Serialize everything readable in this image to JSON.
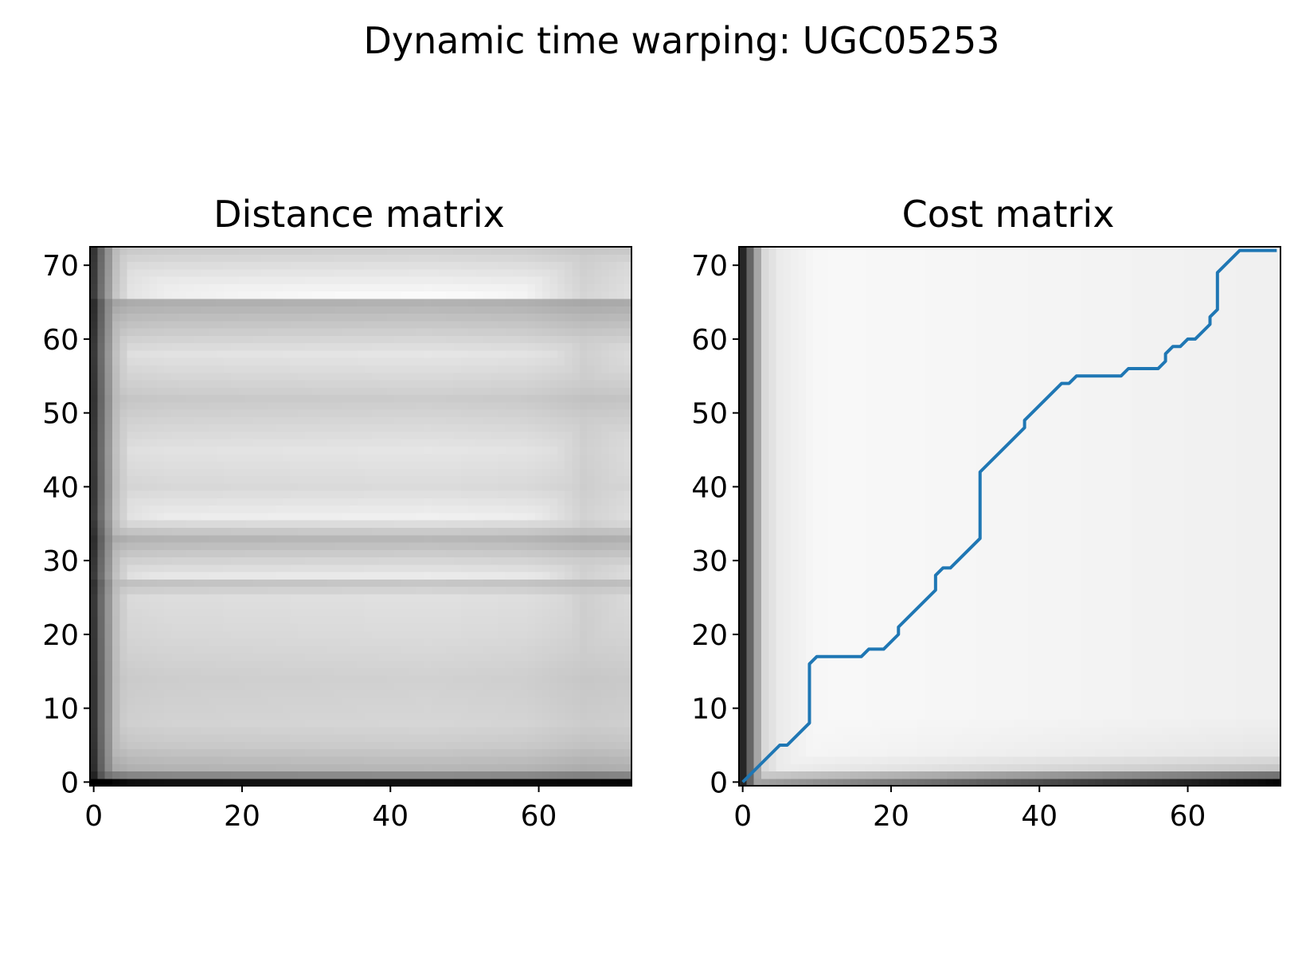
{
  "figure": {
    "title": "Dynamic time warping: UGC05253"
  },
  "chart_data": [
    {
      "type": "heatmap",
      "title": "Distance matrix",
      "xlabel": "",
      "ylabel": "",
      "xlim": [
        -0.5,
        72.5
      ],
      "ylim": [
        -0.5,
        72.5
      ],
      "xticks": [
        0,
        20,
        40,
        60
      ],
      "yticks": [
        0,
        10,
        20,
        30,
        40,
        50,
        60,
        70
      ],
      "size": 73,
      "colormap": "gray_r",
      "grid": false,
      "row_gray": [
        {
          "row": 0,
          "value": 0.92
        },
        {
          "row": 1,
          "value": 0.45
        },
        {
          "row": 2,
          "value": 0.28
        },
        {
          "row": 5,
          "value": 0.2
        },
        {
          "row": 8,
          "value": 0.16
        },
        {
          "row": 14,
          "value": 0.18
        },
        {
          "row": 20,
          "value": 0.14
        },
        {
          "row": 25,
          "value": 0.12
        },
        {
          "row": 27,
          "value": 0.22
        },
        {
          "row": 28,
          "value": 0.08
        },
        {
          "row": 32,
          "value": 0.24
        },
        {
          "row": 33,
          "value": 0.28
        },
        {
          "row": 36,
          "value": 0.06
        },
        {
          "row": 40,
          "value": 0.14
        },
        {
          "row": 45,
          "value": 0.1
        },
        {
          "row": 52,
          "value": 0.2
        },
        {
          "row": 53,
          "value": 0.18
        },
        {
          "row": 58,
          "value": 0.1
        },
        {
          "row": 65,
          "value": 0.3
        },
        {
          "row": 66,
          "value": 0.02
        },
        {
          "row": 70,
          "value": 0.12
        },
        {
          "row": 72,
          "value": 0.18
        }
      ],
      "column_gray": [
        {
          "col": 0,
          "value": 0.75
        },
        {
          "col": 1,
          "value": 0.55
        },
        {
          "col": 2,
          "value": 0.38
        },
        {
          "col": 3,
          "value": 0.22
        },
        {
          "col": 5,
          "value": 0.1
        },
        {
          "col": 10,
          "value": 0.06
        },
        {
          "col": 20,
          "value": 0.04
        },
        {
          "col": 45,
          "value": 0.0
        },
        {
          "col": 58,
          "value": 0.04
        },
        {
          "col": 62,
          "value": 0.1
        },
        {
          "col": 66,
          "value": 0.16
        },
        {
          "col": 72,
          "value": 0.12
        }
      ]
    },
    {
      "type": "heatmap",
      "title": "Cost matrix",
      "xlabel": "",
      "ylabel": "",
      "xlim": [
        -0.5,
        72.5
      ],
      "ylim": [
        -0.5,
        72.5
      ],
      "xticks": [
        0,
        20,
        40,
        60
      ],
      "yticks": [
        0,
        10,
        20,
        30,
        40,
        50,
        60,
        70
      ],
      "size": 73,
      "colormap": "gray_r",
      "grid": false,
      "edge_gray": {
        "left_columns": [
          {
            "col": 0,
            "value": 0.85
          },
          {
            "col": 1,
            "value": 0.6
          },
          {
            "col": 2,
            "value": 0.35
          },
          {
            "col": 3,
            "value": 0.15
          },
          {
            "col": 5,
            "value": 0.08
          },
          {
            "col": 10,
            "value": 0.03
          },
          {
            "col": 30,
            "value": 0.02
          }
        ],
        "bottom_rows": [
          {
            "row": 0,
            "value": 0.35,
            "to_right": 0.98
          },
          {
            "row": 1,
            "value": 0.2,
            "to_right": 0.55
          },
          {
            "row": 2,
            "value": 0.06,
            "to_right": 0.22
          },
          {
            "row": 4,
            "value": 0.03,
            "to_right": 0.1
          },
          {
            "row": 9,
            "value": 0.02,
            "to_right": 0.06
          }
        ]
      },
      "series": [
        {
          "type": "line",
          "color": "#1f77b4",
          "points": [
            [
              0,
              0
            ],
            [
              5,
              5
            ],
            [
              6,
              5
            ],
            [
              9,
              8
            ],
            [
              9,
              16
            ],
            [
              10,
              17
            ],
            [
              16,
              17
            ],
            [
              17,
              18
            ],
            [
              19,
              18
            ],
            [
              21,
              20
            ],
            [
              21,
              21
            ],
            [
              26,
              26
            ],
            [
              26,
              28
            ],
            [
              27,
              29
            ],
            [
              28,
              29
            ],
            [
              32,
              33
            ],
            [
              32,
              42
            ],
            [
              38,
              48
            ],
            [
              38,
              49
            ],
            [
              43,
              54
            ],
            [
              44,
              54
            ],
            [
              45,
              55
            ],
            [
              51,
              55
            ],
            [
              52,
              56
            ],
            [
              56,
              56
            ],
            [
              57,
              57
            ],
            [
              57,
              58
            ],
            [
              58,
              59
            ],
            [
              59,
              59
            ],
            [
              60,
              60
            ],
            [
              61,
              60
            ],
            [
              63,
              62
            ],
            [
              63,
              63
            ],
            [
              64,
              64
            ],
            [
              64,
              69
            ],
            [
              67,
              72
            ],
            [
              72,
              72
            ]
          ]
        }
      ]
    }
  ]
}
